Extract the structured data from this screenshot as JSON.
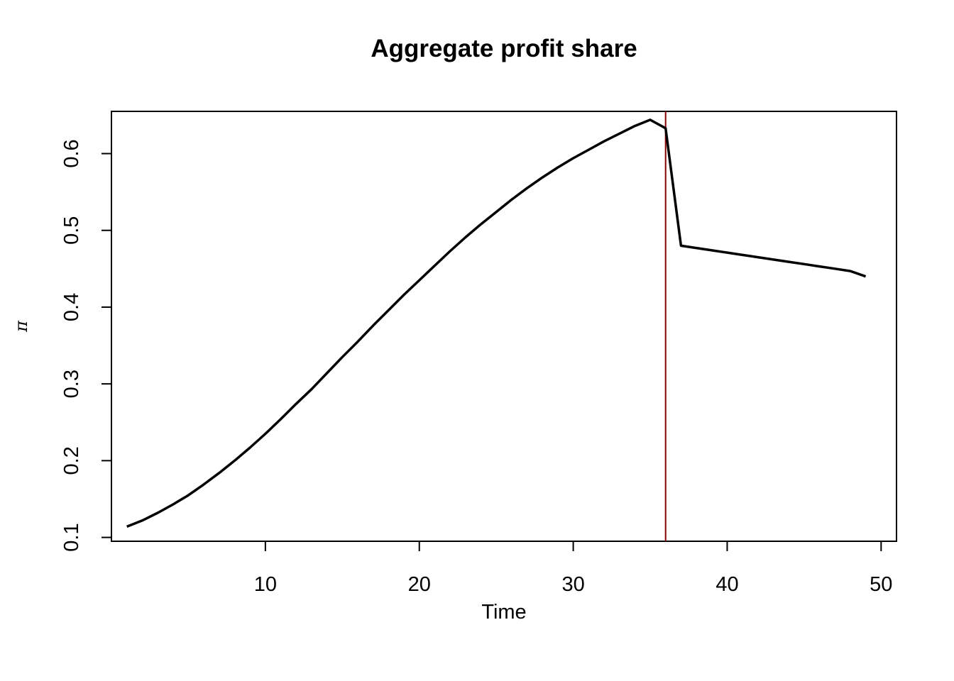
{
  "chart_data": {
    "type": "line",
    "title": "Aggregate profit share",
    "xlabel": "Time",
    "ylabel": "π",
    "xlim": [
      0,
      51
    ],
    "ylim": [
      0.095,
      0.655
    ],
    "x_ticks": [
      10,
      20,
      30,
      40,
      50
    ],
    "x_tick_labels": [
      "10",
      "20",
      "30",
      "40",
      "50"
    ],
    "y_ticks": [
      0.1,
      0.2,
      0.3,
      0.4,
      0.5,
      0.6
    ],
    "y_tick_labels": [
      "0.1",
      "0.2",
      "0.3",
      "0.4",
      "0.5",
      "0.6"
    ],
    "grid": false,
    "legend": "none",
    "series": [
      {
        "color": "#000000",
        "x": [
          1,
          2,
          3,
          4,
          5,
          6,
          7,
          8,
          9,
          10,
          11,
          12,
          13,
          14,
          15,
          16,
          17,
          18,
          19,
          20,
          21,
          22,
          23,
          24,
          25,
          26,
          27,
          28,
          29,
          30,
          31,
          32,
          33,
          34,
          35,
          36,
          37,
          38,
          39,
          40,
          41,
          42,
          43,
          44,
          45,
          46,
          47,
          48,
          49
        ],
        "values": [
          0.114,
          0.122,
          0.132,
          0.143,
          0.155,
          0.169,
          0.184,
          0.2,
          0.217,
          0.235,
          0.254,
          0.274,
          0.293,
          0.314,
          0.335,
          0.355,
          0.376,
          0.396,
          0.416,
          0.435,
          0.454,
          0.473,
          0.491,
          0.508,
          0.524,
          0.54,
          0.555,
          0.569,
          0.582,
          0.594,
          0.605,
          0.616,
          0.626,
          0.636,
          0.644,
          0.633,
          0.48,
          0.477,
          0.474,
          0.471,
          0.468,
          0.465,
          0.462,
          0.459,
          0.456,
          0.453,
          0.45,
          0.447,
          0.44
        ]
      }
    ],
    "vline": {
      "x": 36,
      "color": "#8B0000"
    }
  }
}
